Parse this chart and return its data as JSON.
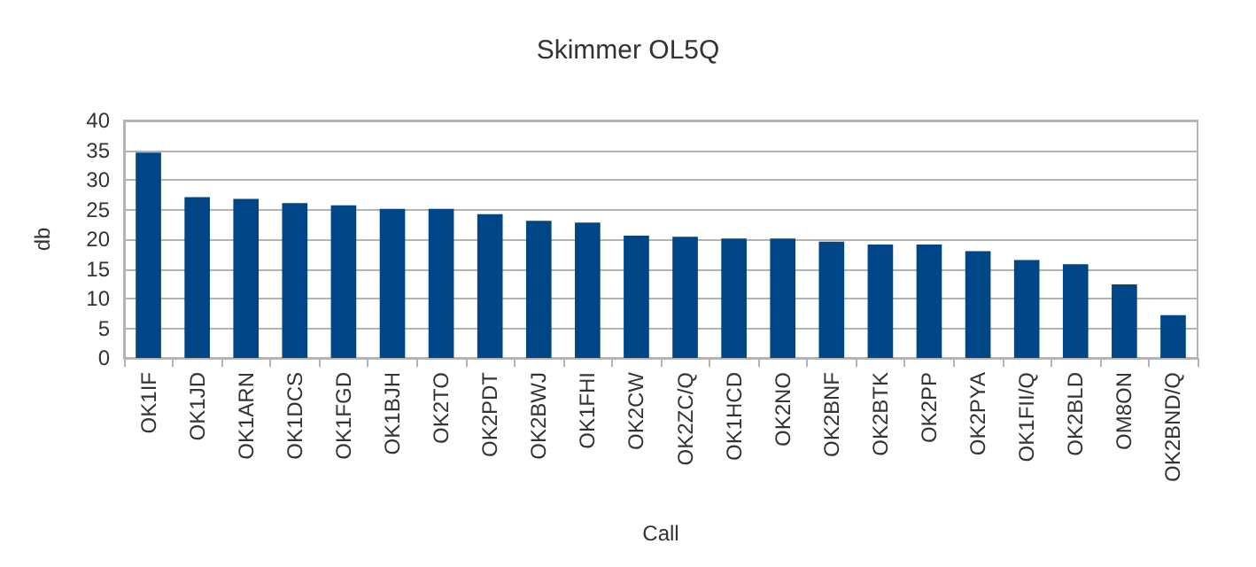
{
  "chart_data": {
    "type": "bar",
    "title": "Skimmer OL5Q",
    "xlabel": "Call",
    "ylabel": "db",
    "categories": [
      "OK1IF",
      "OK1JD",
      "OK1ARN",
      "OK1DCS",
      "OK1FGD",
      "OK1BJH",
      "OK2TO",
      "OK2PDT",
      "OK2BWJ",
      "OK1FHI",
      "OK2CW",
      "OK2ZC/Q",
      "OK1HCD",
      "OK2NO",
      "OK2BNF",
      "OK2BTK",
      "OK2PP",
      "OK2PYA",
      "OK1FII/Q",
      "OK2BLD",
      "OM8ON",
      "OK2BND/Q"
    ],
    "values": [
      34.6,
      27.1,
      26.8,
      26.1,
      25.7,
      25.1,
      25.1,
      24.2,
      23.1,
      22.8,
      20.6,
      20.4,
      20.1,
      20.1,
      19.6,
      19.1,
      19.1,
      18.0,
      16.5,
      15.8,
      12.4,
      7.2
    ],
    "color": "#004586",
    "ylim": [
      0,
      40
    ],
    "yticks": [
      0,
      5,
      10,
      15,
      20,
      25,
      30,
      35,
      40
    ],
    "grid": "y"
  }
}
